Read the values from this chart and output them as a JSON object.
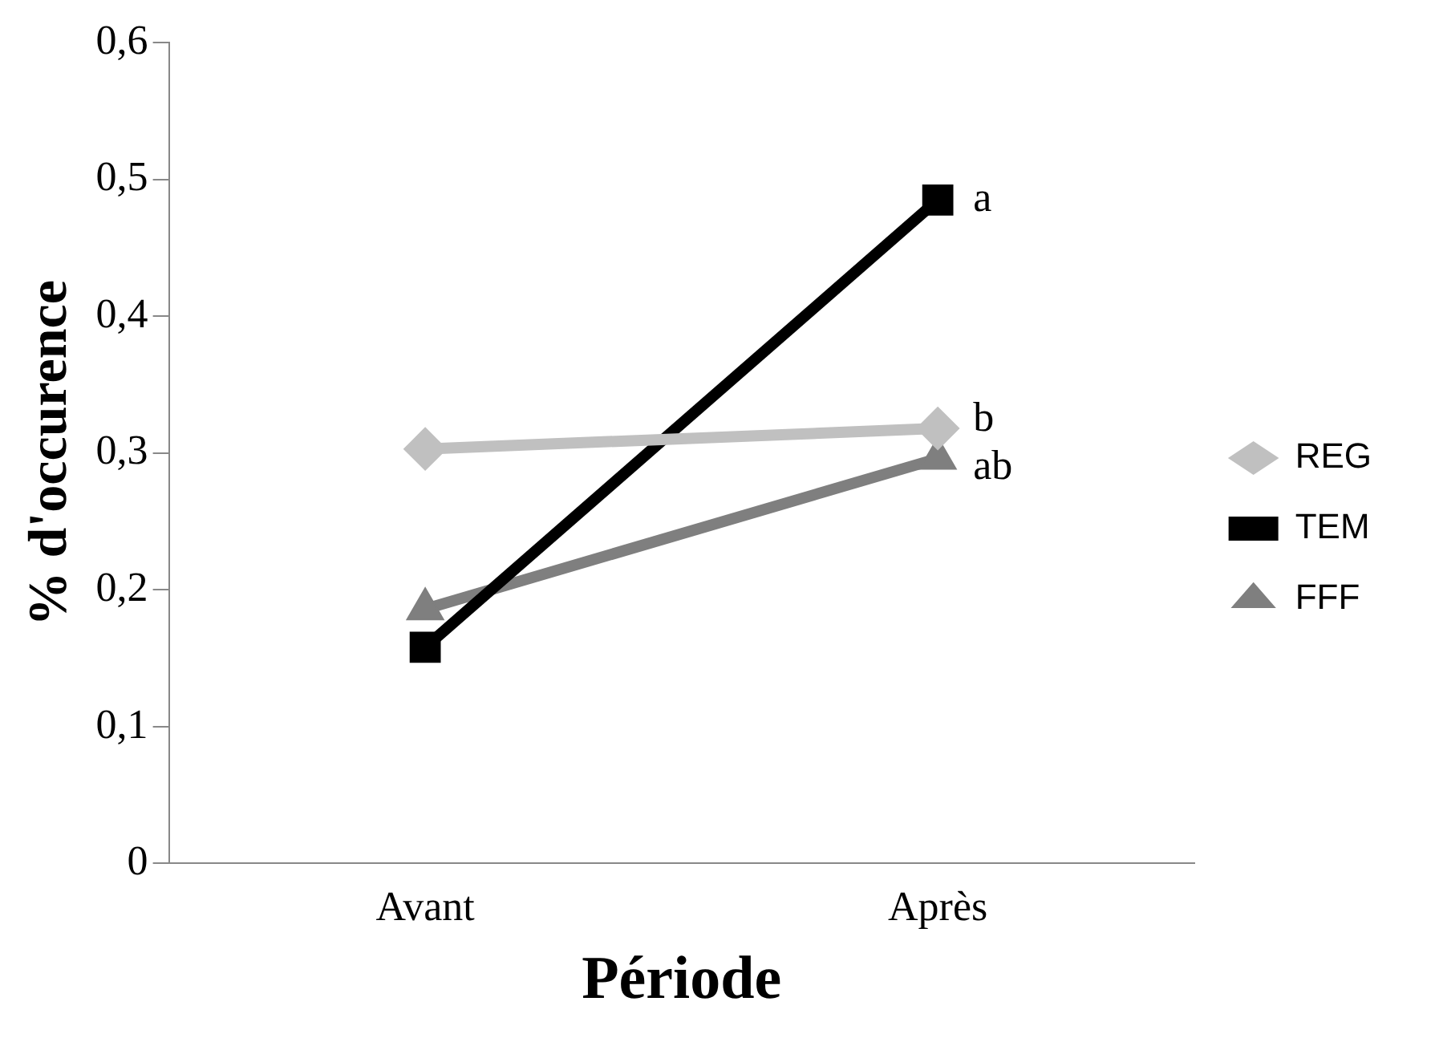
{
  "chart_data": {
    "type": "line",
    "xlabel": "Période",
    "ylabel": "% d'occurence",
    "categories": [
      "Avant",
      "Après"
    ],
    "series": [
      {
        "name": "REG",
        "color": "#c0c0c0",
        "values": [
          0.303,
          0.318
        ],
        "marker": "diamond"
      },
      {
        "name": "TEM",
        "color": "#000000",
        "values": [
          0.158,
          0.485
        ],
        "marker": "square"
      },
      {
        "name": "FFF",
        "color": "#7f7f7f",
        "values": [
          0.186,
          0.296
        ],
        "marker": "triangle"
      }
    ],
    "ylim": [
      0,
      0.6
    ],
    "yticks": [
      {
        "value": 0,
        "label": "0"
      },
      {
        "value": 0.1,
        "label": "0,1"
      },
      {
        "value": 0.2,
        "label": "0,2"
      },
      {
        "value": 0.3,
        "label": "0,3"
      },
      {
        "value": 0.4,
        "label": "0,4"
      },
      {
        "value": 0.5,
        "label": "0,5"
      },
      {
        "value": 0.6,
        "label": "0,6"
      }
    ],
    "grid": false,
    "legend": "right",
    "line_style": "solid",
    "annotations": [
      {
        "text": "a",
        "x": "Après",
        "y": 0.485
      },
      {
        "text": "b",
        "x": "Après",
        "y": 0.318
      },
      {
        "text": "ab",
        "x": "Après",
        "y": 0.296
      }
    ]
  }
}
